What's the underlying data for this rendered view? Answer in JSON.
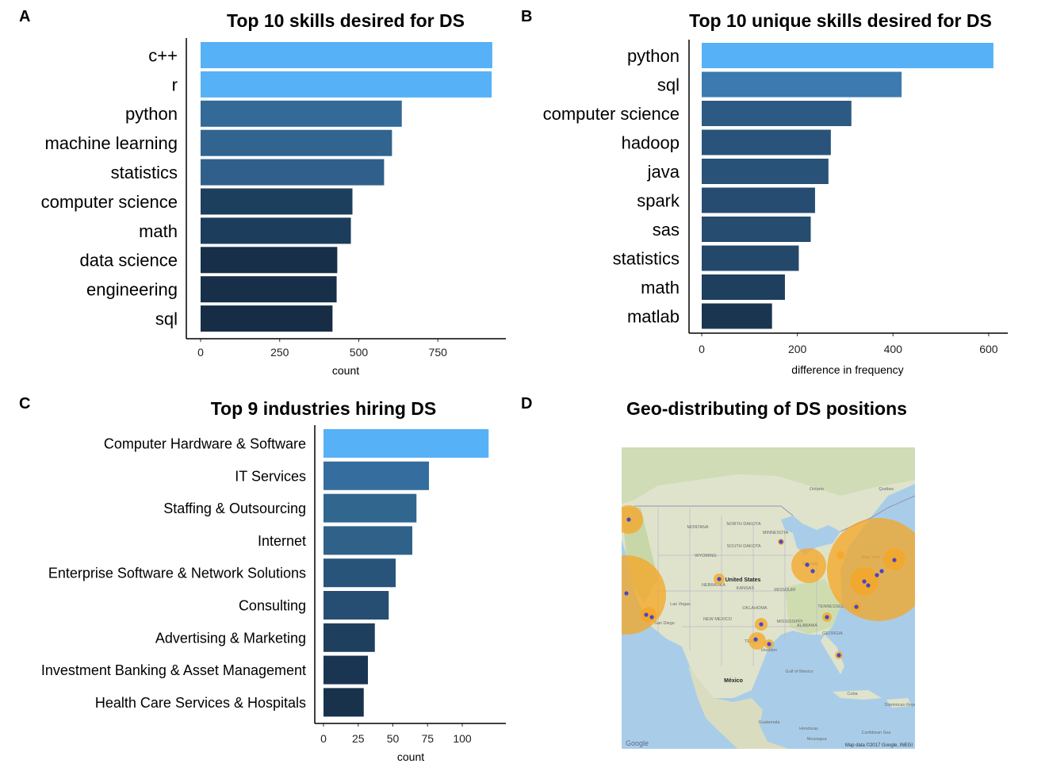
{
  "panels": {
    "a": "A",
    "b": "B",
    "c": "C",
    "d": "D"
  },
  "chart_data": [
    {
      "type": "bar",
      "orientation": "horizontal",
      "title": "Top 10 skills desired for DS",
      "xlabel": "count",
      "ylabel": "",
      "xlim": [
        0,
        970
      ],
      "xticks": [
        0,
        250,
        500,
        750
      ],
      "categories": [
        "c++",
        "r",
        "python",
        "machine learning",
        "statistics",
        "computer science",
        "math",
        "data science",
        "engineering",
        "sql"
      ],
      "values": [
        922,
        920,
        636,
        605,
        580,
        480,
        475,
        432,
        430,
        417
      ],
      "colors": [
        "#56B1F7",
        "#56B1F7",
        "#336A98",
        "#31648F",
        "#2F5F8A",
        "#1D3F5E",
        "#1C3D5B",
        "#172F48",
        "#172F48",
        "#162D45"
      ]
    },
    {
      "type": "bar",
      "orientation": "horizontal",
      "title": "Top 10 unique skills desired for DS",
      "xlabel": "difference in frequency",
      "ylabel": "",
      "xlim": [
        0,
        640
      ],
      "xticks": [
        0,
        200,
        400,
        600
      ],
      "categories": [
        "python",
        "sql",
        "computer science",
        "hadoop",
        "java",
        "spark",
        "sas",
        "statistics",
        "math",
        "matlab"
      ],
      "values": [
        610,
        418,
        313,
        270,
        265,
        237,
        228,
        203,
        174,
        147
      ],
      "colors": [
        "#56B1F7",
        "#3C7AB0",
        "#2C5A83",
        "#29537A",
        "#285277",
        "#264D71",
        "#264C6F",
        "#24486A",
        "#1F3F5E",
        "#1A3550"
      ]
    },
    {
      "type": "bar",
      "orientation": "horizontal",
      "title": "Top 9 industries hiring DS",
      "xlabel": "count",
      "ylabel": "",
      "xlim": [
        0,
        128
      ],
      "xticks": [
        0,
        25,
        50,
        75,
        100
      ],
      "categories": [
        "Computer Hardware & Software",
        "IT Services",
        "Staffing & Outsourcing",
        "Internet",
        "Enterprise Software & Network Solutions",
        "Consulting",
        "Advertising & Marketing",
        "Investment Banking & Asset Management",
        "Health Care Services & Hospitals"
      ],
      "values": [
        119,
        76,
        67,
        64,
        52,
        47,
        37,
        32,
        29
      ],
      "colors": [
        "#56B1F7",
        "#356E9E",
        "#31668F",
        "#2F6189",
        "#29547A",
        "#264E72",
        "#1E3F5D",
        "#1A3552",
        "#19324C"
      ]
    },
    {
      "type": "map",
      "title": "Geo-distributing of DS positions",
      "map_labels": [
        "Ontario",
        "Québec",
        "MONTANA",
        "NORTH DAKOTA",
        "SOUTH DAKOTA",
        "MINNESOTA",
        "WYOMING",
        "NEBRASKA",
        "United States",
        "KANSAS",
        "MISSOURI",
        "OKLAHOMA",
        "TENNESSEE",
        "NEW MEXICO",
        "TEXAS",
        "GEORGIA",
        "ALABAMA",
        "MISSISSIPPI",
        "Las Vegas",
        "San Diego",
        "Chicago",
        "Houston",
        "New York",
        "México",
        "Cuba",
        "Gulf of Mexico",
        "Dominican Republic",
        "Honduras",
        "Nicaragua",
        "Guatemala",
        "Caribbean Sea"
      ],
      "attribution": "Map data ©2017 Google, INEGI",
      "logo": "Google"
    }
  ]
}
